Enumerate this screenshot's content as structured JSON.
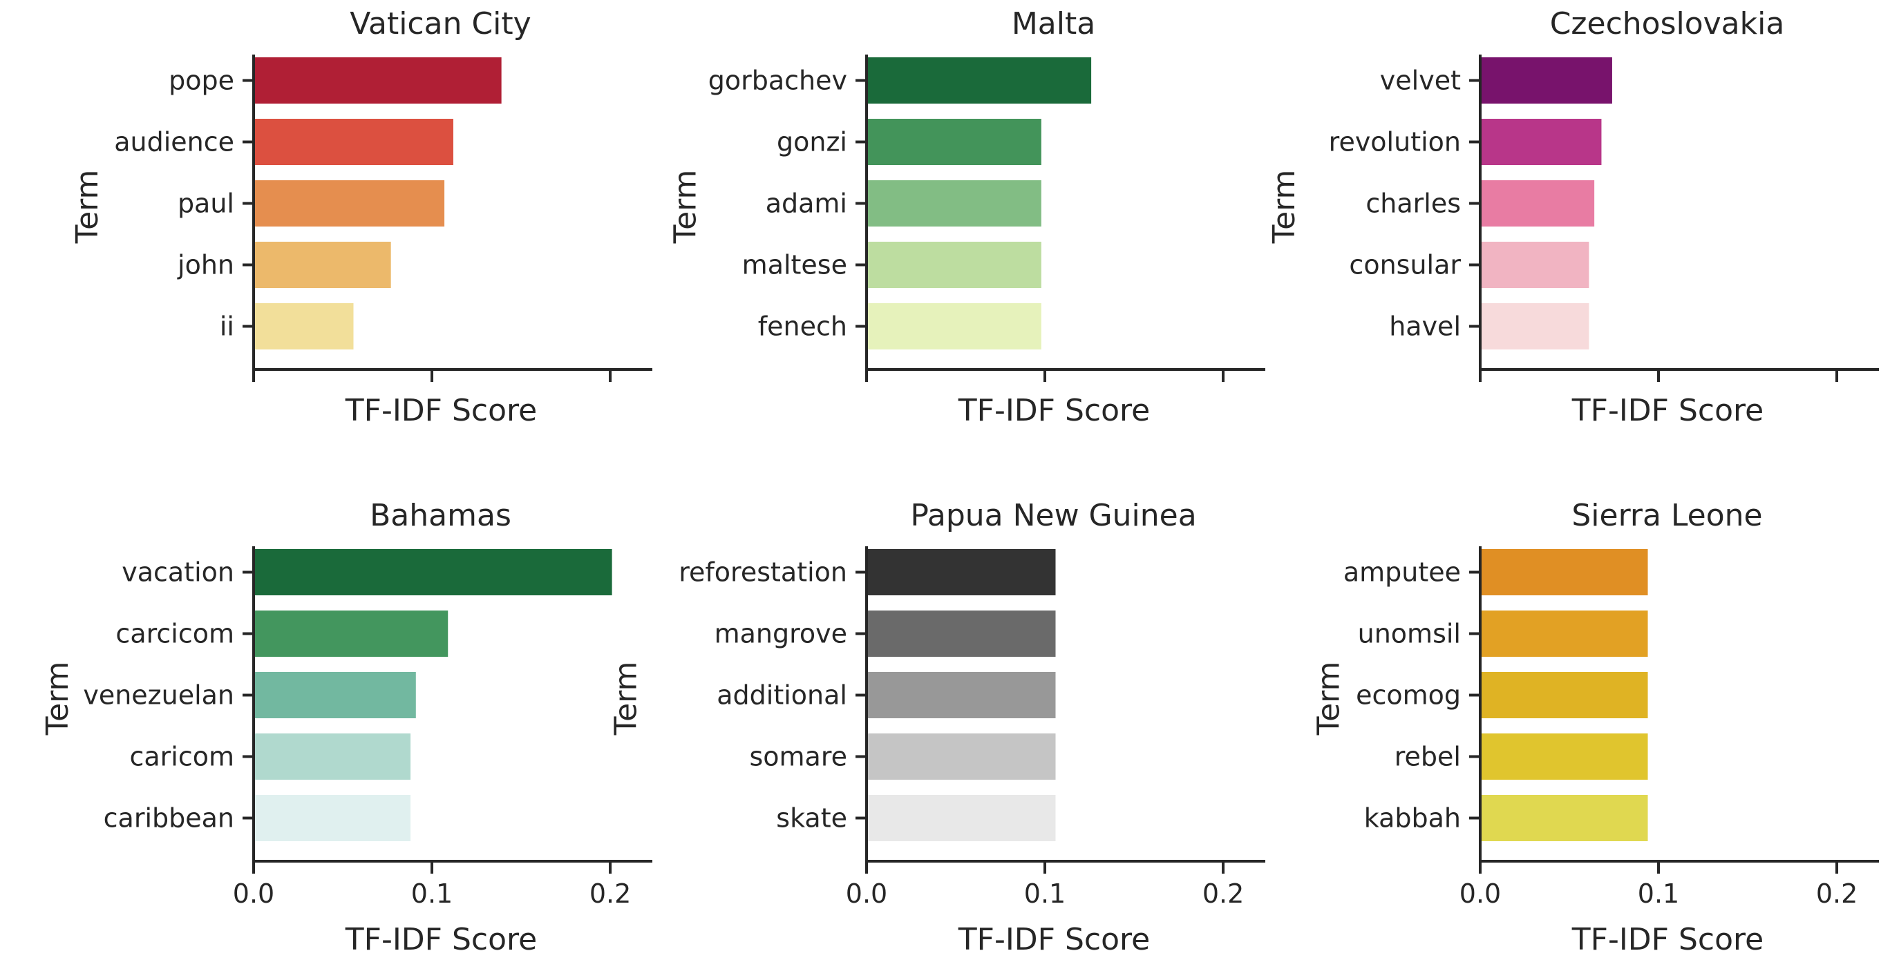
{
  "chart_data": [
    {
      "type": "bar",
      "orientation": "horizontal",
      "title": "Vatican City",
      "xlabel": "TF-IDF Score",
      "ylabel": "Term",
      "categories": [
        "pope",
        "audience",
        "paul",
        "john",
        "ii"
      ],
      "values": [
        0.139,
        0.112,
        0.107,
        0.077,
        0.056
      ],
      "colors": [
        "#b01f35",
        "#dc5040",
        "#e58e4f",
        "#ecb96b",
        "#f2df9a"
      ],
      "xlim": [
        0,
        0.212
      ],
      "xticks": [
        0.0,
        0.1,
        0.2
      ],
      "xtick_labels": [],
      "grid": false
    },
    {
      "type": "bar",
      "orientation": "horizontal",
      "title": "Malta",
      "xlabel": "TF-IDF Score",
      "ylabel": "Term",
      "categories": [
        "gorbachev",
        "gonzi",
        "adami",
        "maltese",
        "fenech"
      ],
      "values": [
        0.126,
        0.098,
        0.098,
        0.098,
        0.098
      ],
      "colors": [
        "#1a6a3a",
        "#43945a",
        "#82bd84",
        "#bddda0",
        "#e6f2bb"
      ],
      "xlim": [
        0,
        0.212
      ],
      "xticks": [
        0.0,
        0.1,
        0.2
      ],
      "xtick_labels": [],
      "grid": false
    },
    {
      "type": "bar",
      "orientation": "horizontal",
      "title": "Czechoslovakia",
      "xlabel": "TF-IDF Score",
      "ylabel": "Term",
      "categories": [
        "velvet",
        "revolution",
        "charles",
        "consular",
        "havel"
      ],
      "values": [
        0.074,
        0.068,
        0.064,
        0.061,
        0.061
      ],
      "colors": [
        "#78136c",
        "#b83689",
        "#e87ca3",
        "#f1b4c2",
        "#f7dadb"
      ],
      "xlim": [
        0,
        0.212
      ],
      "xticks": [
        0.0,
        0.1,
        0.2
      ],
      "xtick_labels": [],
      "grid": false
    },
    {
      "type": "bar",
      "orientation": "horizontal",
      "title": "Bahamas",
      "xlabel": "TF-IDF Score",
      "ylabel": "Term",
      "categories": [
        "vacation",
        "carcicom",
        "venezuelan",
        "caricom",
        "caribbean"
      ],
      "values": [
        0.201,
        0.109,
        0.091,
        0.088,
        0.088
      ],
      "colors": [
        "#1a6a3a",
        "#43965e",
        "#72b8a0",
        "#b0d9ce",
        "#e0f0ef"
      ],
      "xlim": [
        0,
        0.212
      ],
      "xticks": [
        0.0,
        0.1,
        0.2
      ],
      "xtick_labels": [
        "0.0",
        "0.1",
        "0.2"
      ],
      "grid": false
    },
    {
      "type": "bar",
      "orientation": "horizontal",
      "title": "Papua New Guinea",
      "xlabel": "TF-IDF Score",
      "ylabel": "Term",
      "categories": [
        "reforestation",
        "mangrove",
        "additional",
        "somare",
        "skate"
      ],
      "values": [
        0.106,
        0.106,
        0.106,
        0.106,
        0.106
      ],
      "colors": [
        "#333333",
        "#6a6a6a",
        "#989898",
        "#c5c5c5",
        "#e8e8e8"
      ],
      "xlim": [
        0,
        0.212
      ],
      "xticks": [
        0.0,
        0.1,
        0.2
      ],
      "xtick_labels": [
        "0.0",
        "0.1",
        "0.2"
      ],
      "grid": false
    },
    {
      "type": "bar",
      "orientation": "horizontal",
      "title": "Sierra Leone",
      "xlabel": "TF-IDF Score",
      "ylabel": "Term",
      "categories": [
        "amputee",
        "unomsil",
        "ecomog",
        "rebel",
        "kabbah"
      ],
      "values": [
        0.094,
        0.094,
        0.094,
        0.094,
        0.094
      ],
      "colors": [
        "#e08f24",
        "#e2a124",
        "#dfb324",
        "#e0c52e",
        "#e0d850"
      ],
      "xlim": [
        0,
        0.212
      ],
      "xticks": [
        0.0,
        0.1,
        0.2
      ],
      "xtick_labels": [
        "0.0",
        "0.1",
        "0.2"
      ],
      "grid": false
    }
  ]
}
